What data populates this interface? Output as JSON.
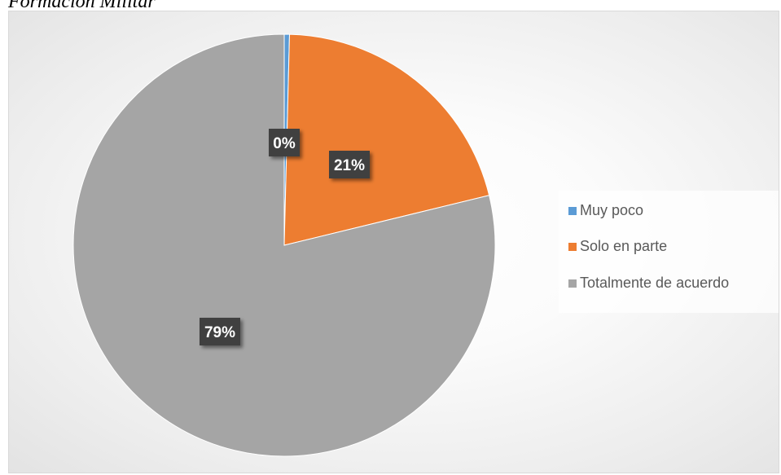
{
  "caption": "Formación Militar",
  "chart_data": {
    "type": "pie",
    "categories": [
      "Muy poco",
      "Solo en parte",
      "Totalmente de acuerdo"
    ],
    "values": [
      0.4,
      20.8,
      78.8
    ],
    "data_labels": [
      "0%",
      "21%",
      "79%"
    ],
    "colors": [
      "#5b9bd5",
      "#ed7d31",
      "#a5a5a5"
    ],
    "label_box_color": "#404040",
    "label_text_color": "#ffffff",
    "legend_position": "right",
    "start_angle": "12 o'clock",
    "direction": "clockwise"
  }
}
